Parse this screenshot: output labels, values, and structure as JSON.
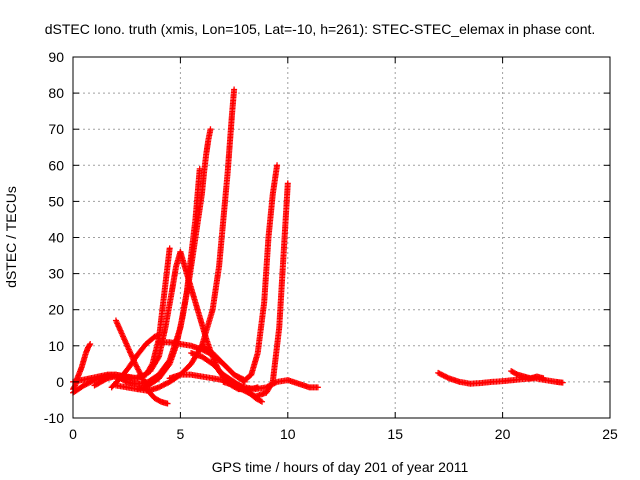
{
  "chart_data": {
    "type": "scatter",
    "title": "dSTEC Iono. truth (xmis, Lon=105, Lat=-10, h=261): STEC-STEC_elemax in phase cont.",
    "xlabel": "GPS time / hours of day 201 of year 2011",
    "ylabel": "dSTEC  / TECUs",
    "xlim": [
      0,
      25
    ],
    "ylim": [
      -10,
      90
    ],
    "xticks": [
      0,
      5,
      10,
      15,
      20,
      25
    ],
    "yticks": [
      -10,
      0,
      10,
      20,
      30,
      40,
      50,
      60,
      70,
      80,
      90
    ],
    "x_tick_labels": [
      "0",
      "5",
      "10",
      "15",
      "20",
      "25"
    ],
    "y_tick_labels": [
      "-10",
      "0",
      "10",
      "20",
      "30",
      "40",
      "50",
      "60",
      "70",
      "80",
      "90"
    ],
    "grid": true,
    "legend": "none",
    "marker": "+",
    "color": "#ff0000",
    "series": [
      {
        "x": [
          0.0,
          0.1,
          0.2,
          0.3,
          0.4,
          0.5,
          0.6,
          0.7,
          0.8
        ],
        "y": [
          -2,
          -1,
          1,
          2.5,
          4,
          6,
          8,
          9.5,
          10.5
        ]
      },
      {
        "x": [
          0.0,
          0.4,
          0.8,
          1.2,
          1.6,
          2.0,
          2.4,
          2.8,
          3.2,
          3.6,
          4.0,
          4.3,
          4.6,
          4.8,
          5.0
        ],
        "y": [
          0,
          0.5,
          1,
          1.5,
          2,
          2,
          1.5,
          1,
          1.5,
          3,
          7,
          15,
          25,
          32,
          36
        ]
      },
      {
        "x": [
          0.0,
          0.5,
          1.0,
          1.5,
          2.0,
          2.5,
          3.0,
          3.4,
          3.7,
          4.0,
          4.2,
          4.4,
          4.5
        ],
        "y": [
          -3,
          -1,
          0.5,
          1.5,
          2,
          1.5,
          1,
          2,
          5,
          12,
          22,
          32,
          37
        ]
      },
      {
        "x": [
          1.0,
          1.3,
          1.6,
          1.9,
          2.2,
          2.5,
          2.8,
          3.1,
          3.5,
          4.0,
          4.5,
          5.0,
          5.3,
          5.5,
          5.7,
          5.8,
          5.9
        ],
        "y": [
          -1,
          0,
          1,
          1.5,
          1,
          0,
          -0.5,
          -0.5,
          0,
          2,
          6,
          15,
          25,
          35,
          45,
          52,
          59
        ]
      },
      {
        "x": [
          2.0,
          2.3,
          2.6,
          2.9,
          3.2,
          3.5,
          3.8,
          4.1,
          4.4
        ],
        "y": [
          17,
          13,
          9,
          5,
          1.5,
          -2.5,
          -4.5,
          -5.5,
          -6
        ]
      },
      {
        "x": [
          1.8,
          2.2,
          2.6,
          3.0,
          3.4,
          3.8,
          4.0
        ],
        "y": [
          -1.5,
          1,
          4,
          7.5,
          10.5,
          12.5,
          13
        ]
      },
      {
        "x": [
          2.0,
          2.5,
          3.0,
          3.5,
          4.0,
          4.5,
          4.8,
          5.1,
          5.4,
          5.7,
          6.0,
          6.1,
          6.2,
          6.3,
          6.4
        ],
        "y": [
          -1,
          -1.5,
          -2,
          -1,
          1,
          5,
          10,
          18,
          28,
          40,
          52,
          58,
          63,
          67,
          70
        ]
      },
      {
        "x": [
          3.0,
          3.5,
          4.0,
          4.5,
          5.0,
          5.5,
          6.0,
          6.5,
          6.8,
          7.0,
          7.2,
          7.3,
          7.4,
          7.5
        ],
        "y": [
          -2,
          -2.5,
          -1.5,
          0,
          2,
          5,
          10,
          20,
          32,
          45,
          58,
          66,
          74,
          81
        ]
      },
      {
        "x": [
          4.0,
          4.5,
          5.0,
          5.5,
          6.0,
          6.5,
          7.0,
          7.5,
          8.0
        ],
        "y": [
          11,
          11,
          10.5,
          10,
          9,
          7.5,
          5,
          2,
          0
        ]
      },
      {
        "x": [
          5.0,
          5.3,
          5.6,
          5.9,
          6.2,
          6.5,
          6.8,
          7.1,
          7.4,
          7.7,
          8.0,
          8.3,
          8.6
        ],
        "y": [
          36,
          30,
          24,
          18,
          12,
          7,
          3,
          0.5,
          -1,
          -2,
          -2,
          -2,
          -1.5
        ]
      },
      {
        "x": [
          4.5,
          5.0,
          5.5,
          6.0,
          6.5,
          7.0,
          7.5,
          8.0,
          8.5,
          9.0,
          9.5,
          10.0,
          10.5,
          11.0,
          11.4
        ],
        "y": [
          1,
          2,
          2,
          1.5,
          1,
          0.5,
          -0.5,
          -1.5,
          -2,
          -1.5,
          0,
          0.5,
          -0.5,
          -1.5,
          -1.5
        ]
      },
      {
        "x": [
          6.0,
          6.5,
          7.0,
          7.5,
          8.0,
          8.3,
          8.6,
          8.9,
          9.1,
          9.3,
          9.5
        ],
        "y": [
          10,
          8,
          5,
          2,
          0.5,
          2,
          8,
          22,
          40,
          52,
          60
        ]
      },
      {
        "x": [
          5.5,
          6.0,
          6.5,
          7.0,
          7.5,
          8.0,
          8.5,
          8.8
        ],
        "y": [
          8,
          7,
          5,
          2,
          0,
          -2,
          -4.5,
          -5.5
        ]
      },
      {
        "x": [
          7.0,
          7.5,
          8.0,
          8.5,
          9.0,
          9.3,
          9.6,
          9.8,
          10.0
        ],
        "y": [
          0,
          -1,
          -2.5,
          -4,
          -3,
          0,
          15,
          35,
          55
        ]
      },
      {
        "x": [
          17.0,
          17.5,
          18.0,
          18.5,
          19.0,
          19.5,
          20.0,
          20.5,
          21.0,
          21.5,
          22.0,
          22.5,
          22.8
        ],
        "y": [
          2.5,
          1,
          0,
          -0.5,
          -0.3,
          0,
          0.2,
          0.5,
          0.8,
          1,
          0.5,
          0,
          -0.2
        ]
      },
      {
        "x": [
          20.4,
          20.7,
          21.0,
          21.3,
          21.6,
          21.9
        ],
        "y": [
          3,
          2,
          1.5,
          1,
          1.5,
          1
        ]
      }
    ]
  }
}
